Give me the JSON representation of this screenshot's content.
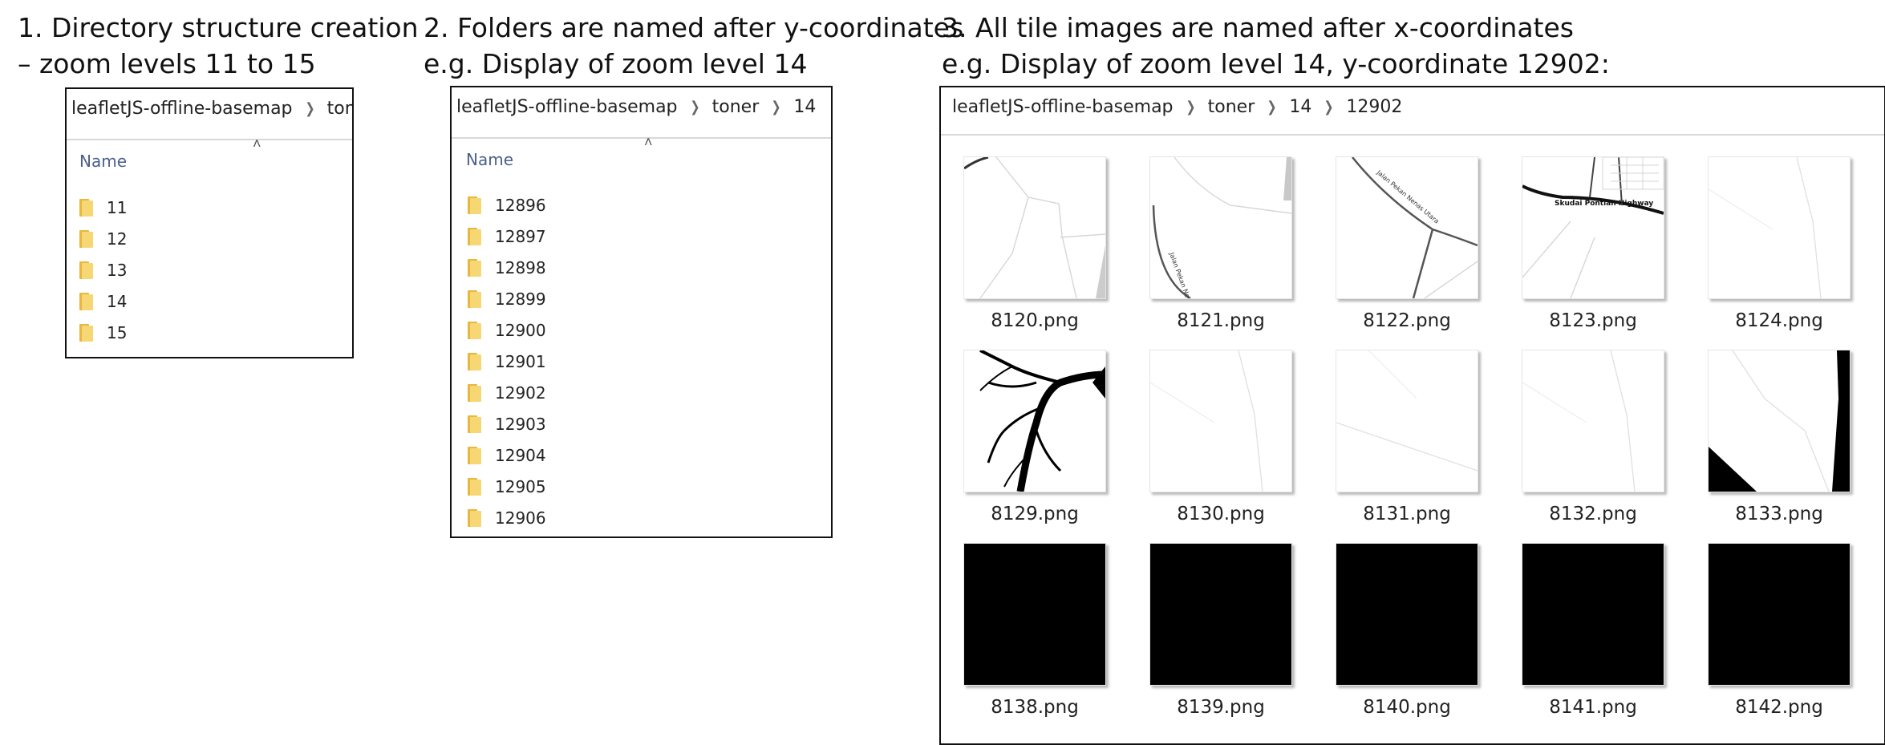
{
  "step1": {
    "line1": "1. Directory structure creation",
    "line2": "– zoom levels 11 to 15",
    "breadcrumb": [
      "leafletJS-offline-basemap",
      "toner"
    ],
    "column_header": "Name",
    "folders": [
      "11",
      "12",
      "13",
      "14",
      "15"
    ]
  },
  "step2": {
    "line1": "2. Folders are named after y-coordinates",
    "line2": "e.g. Display of zoom level 14",
    "breadcrumb": [
      "leafletJS-offline-basemap",
      "toner",
      "14"
    ],
    "column_header": "Name",
    "folders": [
      "12896",
      "12897",
      "12898",
      "12899",
      "12900",
      "12901",
      "12902",
      "12903",
      "12904",
      "12905",
      "12906"
    ]
  },
  "step3": {
    "line1": "3. All tile images are named after x-coordinates",
    "line2": "e.g. Display of zoom level 14, y-coordinate 12902:",
    "breadcrumb": [
      "leafletJS-offline-basemap",
      "toner",
      "14",
      "12902"
    ],
    "tiles": [
      {
        "name": "8120.png",
        "style": "roads-light"
      },
      {
        "name": "8121.png",
        "style": "road-labeled"
      },
      {
        "name": "8122.png",
        "style": "road-fork"
      },
      {
        "name": "8123.png",
        "style": "highway"
      },
      {
        "name": "8124.png",
        "style": "faint"
      },
      {
        "name": "8129.png",
        "style": "river"
      },
      {
        "name": "8130.png",
        "style": "faint"
      },
      {
        "name": "8131.png",
        "style": "faint-line"
      },
      {
        "name": "8132.png",
        "style": "faint"
      },
      {
        "name": "8133.png",
        "style": "coast"
      },
      {
        "name": "8138.png",
        "style": "water"
      },
      {
        "name": "8139.png",
        "style": "water"
      },
      {
        "name": "8140.png",
        "style": "water"
      },
      {
        "name": "8141.png",
        "style": "water"
      },
      {
        "name": "8142.png",
        "style": "water"
      }
    ],
    "map_labels": {
      "road_a": "Jalan Pekan Nenas Utara",
      "road_b": "Jalan Pekan Nenas Utara",
      "highway": "Skudai Pontian Highway"
    }
  },
  "colors": {
    "border": "#111111",
    "column_header": "#4a5f8c",
    "folder": "#f7d774",
    "water": "#000000"
  }
}
